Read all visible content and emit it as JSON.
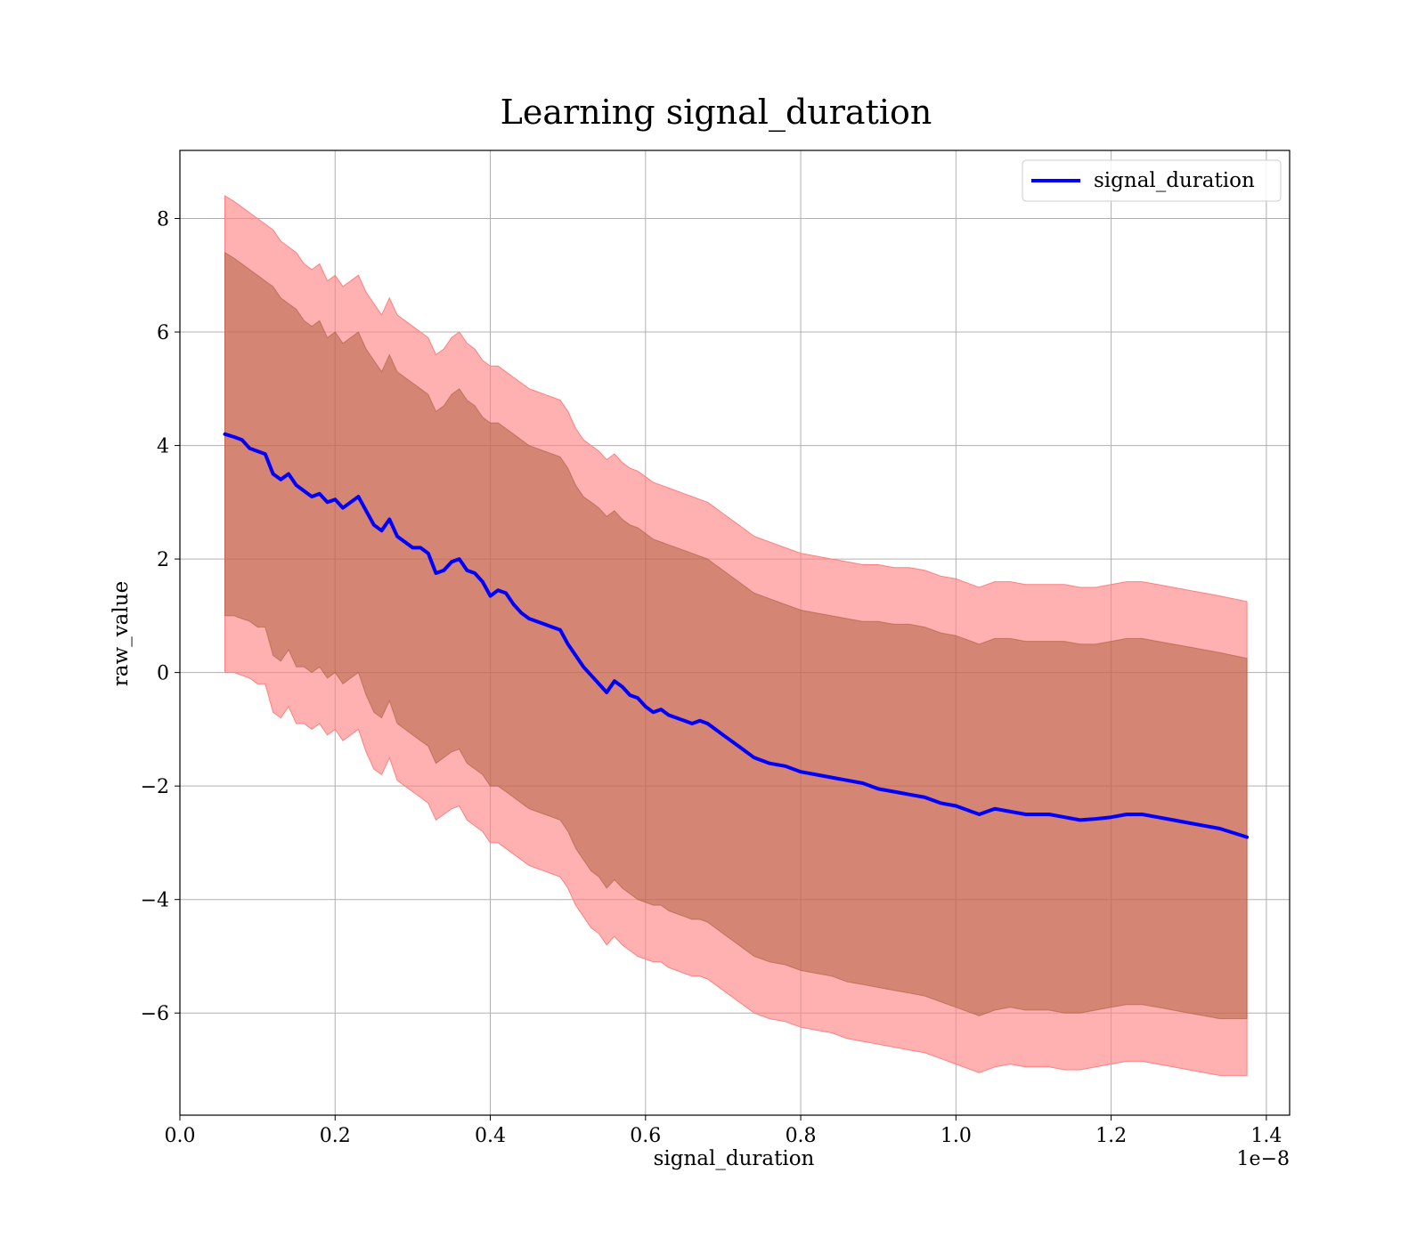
{
  "chart_data": {
    "type": "line",
    "title": "Learning signal_duration",
    "xlabel": "signal_duration",
    "ylabel": "raw_value",
    "x_offset_text": "1e−8",
    "xlim": [
      0.0,
      1.43
    ],
    "ylim": [
      -7.8,
      9.2
    ],
    "x_ticks": [
      0.0,
      0.2,
      0.4,
      0.6,
      0.8,
      1.0,
      1.2,
      1.4
    ],
    "x_tick_labels": [
      "0.0",
      "0.2",
      "0.4",
      "0.6",
      "0.8",
      "1.0",
      "1.2",
      "1.4"
    ],
    "y_ticks": [
      -6,
      -4,
      -2,
      0,
      2,
      4,
      6,
      8
    ],
    "y_tick_labels": [
      "−6",
      "−4",
      "−2",
      "0",
      "2",
      "4",
      "6",
      "8"
    ],
    "grid": true,
    "legend_position": "top-right",
    "colors": {
      "line": "#0000ff",
      "outer_band": "#ff8080",
      "inner_band": "#a0522d"
    },
    "x": [
      0.058,
      0.07,
      0.08,
      0.09,
      0.1,
      0.11,
      0.12,
      0.13,
      0.14,
      0.15,
      0.16,
      0.17,
      0.18,
      0.19,
      0.2,
      0.21,
      0.22,
      0.23,
      0.24,
      0.25,
      0.26,
      0.27,
      0.28,
      0.29,
      0.3,
      0.31,
      0.32,
      0.33,
      0.34,
      0.35,
      0.36,
      0.37,
      0.38,
      0.39,
      0.4,
      0.41,
      0.42,
      0.43,
      0.44,
      0.45,
      0.46,
      0.47,
      0.48,
      0.49,
      0.5,
      0.51,
      0.52,
      0.53,
      0.54,
      0.55,
      0.56,
      0.57,
      0.58,
      0.59,
      0.6,
      0.61,
      0.62,
      0.63,
      0.64,
      0.65,
      0.66,
      0.67,
      0.68,
      0.69,
      0.7,
      0.72,
      0.74,
      0.76,
      0.78,
      0.8,
      0.82,
      0.84,
      0.86,
      0.88,
      0.9,
      0.92,
      0.94,
      0.96,
      0.98,
      1.0,
      1.02,
      1.03,
      1.05,
      1.07,
      1.09,
      1.12,
      1.14,
      1.16,
      1.18,
      1.2,
      1.22,
      1.24,
      1.26,
      1.28,
      1.3,
      1.32,
      1.34,
      1.375
    ],
    "series": [
      {
        "name": "signal_duration",
        "mean": [
          4.2,
          4.15,
          4.1,
          3.95,
          3.9,
          3.85,
          3.5,
          3.4,
          3.5,
          3.3,
          3.2,
          3.1,
          3.15,
          3.0,
          3.05,
          2.9,
          3.0,
          3.1,
          2.85,
          2.6,
          2.5,
          2.7,
          2.4,
          2.3,
          2.2,
          2.2,
          2.1,
          1.75,
          1.8,
          1.95,
          2.0,
          1.8,
          1.75,
          1.6,
          1.35,
          1.45,
          1.4,
          1.2,
          1.05,
          0.95,
          0.9,
          0.85,
          0.8,
          0.75,
          0.5,
          0.3,
          0.1,
          -0.05,
          -0.2,
          -0.35,
          -0.15,
          -0.25,
          -0.4,
          -0.45,
          -0.6,
          -0.7,
          -0.65,
          -0.75,
          -0.8,
          -0.85,
          -0.9,
          -0.85,
          -0.9,
          -1.0,
          -1.1,
          -1.3,
          -1.5,
          -1.6,
          -1.65,
          -1.75,
          -1.8,
          -1.85,
          -1.9,
          -1.95,
          -2.05,
          -2.1,
          -2.15,
          -2.2,
          -2.3,
          -2.35,
          -2.45,
          -2.5,
          -2.4,
          -2.45,
          -2.5,
          -2.5,
          -2.55,
          -2.6,
          -2.58,
          -2.55,
          -2.5,
          -2.5,
          -2.55,
          -2.6,
          -2.65,
          -2.7,
          -2.75,
          -2.9
        ],
        "band_outer_upper": [
          8.4,
          8.3,
          8.2,
          8.1,
          8.0,
          7.9,
          7.8,
          7.6,
          7.5,
          7.4,
          7.2,
          7.1,
          7.2,
          6.9,
          7.0,
          6.8,
          6.9,
          7.0,
          6.7,
          6.5,
          6.3,
          6.6,
          6.3,
          6.2,
          6.1,
          6.0,
          5.9,
          5.6,
          5.7,
          5.9,
          6.0,
          5.8,
          5.7,
          5.5,
          5.4,
          5.4,
          5.3,
          5.2,
          5.1,
          5.0,
          4.95,
          4.9,
          4.85,
          4.8,
          4.6,
          4.3,
          4.1,
          4.0,
          3.9,
          3.75,
          3.85,
          3.7,
          3.6,
          3.55,
          3.45,
          3.35,
          3.3,
          3.25,
          3.2,
          3.15,
          3.1,
          3.05,
          3.0,
          2.9,
          2.8,
          2.6,
          2.4,
          2.3,
          2.2,
          2.1,
          2.05,
          2.0,
          1.95,
          1.9,
          1.9,
          1.85,
          1.85,
          1.8,
          1.7,
          1.65,
          1.55,
          1.5,
          1.6,
          1.6,
          1.55,
          1.55,
          1.55,
          1.5,
          1.5,
          1.55,
          1.6,
          1.6,
          1.55,
          1.5,
          1.45,
          1.4,
          1.35,
          1.25
        ],
        "band_inner_upper": [
          7.4,
          7.3,
          7.2,
          7.1,
          7.0,
          6.9,
          6.8,
          6.6,
          6.5,
          6.4,
          6.2,
          6.1,
          6.2,
          5.9,
          6.0,
          5.8,
          5.9,
          6.0,
          5.7,
          5.5,
          5.3,
          5.6,
          5.3,
          5.2,
          5.1,
          5.0,
          4.9,
          4.6,
          4.7,
          4.9,
          5.0,
          4.8,
          4.7,
          4.5,
          4.4,
          4.4,
          4.3,
          4.2,
          4.1,
          4.0,
          3.95,
          3.9,
          3.85,
          3.8,
          3.6,
          3.3,
          3.1,
          3.0,
          2.9,
          2.75,
          2.85,
          2.7,
          2.6,
          2.55,
          2.45,
          2.35,
          2.3,
          2.25,
          2.2,
          2.15,
          2.1,
          2.05,
          2.0,
          1.9,
          1.8,
          1.6,
          1.4,
          1.3,
          1.2,
          1.1,
          1.05,
          1.0,
          0.95,
          0.9,
          0.9,
          0.85,
          0.85,
          0.8,
          0.7,
          0.65,
          0.55,
          0.5,
          0.6,
          0.6,
          0.55,
          0.55,
          0.55,
          0.5,
          0.5,
          0.55,
          0.6,
          0.6,
          0.55,
          0.5,
          0.45,
          0.4,
          0.35,
          0.25
        ],
        "band_inner_lower": [
          1.0,
          1.0,
          0.95,
          0.9,
          0.8,
          0.8,
          0.3,
          0.2,
          0.4,
          0.1,
          0.1,
          0.0,
          0.1,
          -0.1,
          0.0,
          -0.2,
          -0.1,
          0.0,
          -0.4,
          -0.7,
          -0.8,
          -0.5,
          -0.9,
          -1.0,
          -1.1,
          -1.2,
          -1.3,
          -1.6,
          -1.5,
          -1.4,
          -1.35,
          -1.6,
          -1.7,
          -1.8,
          -2.0,
          -2.0,
          -2.1,
          -2.2,
          -2.3,
          -2.4,
          -2.45,
          -2.5,
          -2.55,
          -2.6,
          -2.8,
          -3.1,
          -3.3,
          -3.5,
          -3.6,
          -3.8,
          -3.65,
          -3.8,
          -3.9,
          -4.0,
          -4.05,
          -4.1,
          -4.1,
          -4.2,
          -4.25,
          -4.3,
          -4.35,
          -4.35,
          -4.4,
          -4.5,
          -4.6,
          -4.8,
          -5.0,
          -5.1,
          -5.15,
          -5.25,
          -5.3,
          -5.35,
          -5.45,
          -5.5,
          -5.55,
          -5.6,
          -5.65,
          -5.7,
          -5.8,
          -5.9,
          -6.0,
          -6.05,
          -5.95,
          -5.9,
          -5.95,
          -5.95,
          -6.0,
          -6.0,
          -5.95,
          -5.9,
          -5.85,
          -5.85,
          -5.9,
          -5.95,
          -6.0,
          -6.05,
          -6.1,
          -6.1
        ],
        "band_outer_lower": [
          0.0,
          0.0,
          -0.05,
          -0.1,
          -0.2,
          -0.2,
          -0.7,
          -0.8,
          -0.6,
          -0.9,
          -0.9,
          -1.0,
          -0.9,
          -1.1,
          -1.0,
          -1.2,
          -1.1,
          -1.0,
          -1.4,
          -1.7,
          -1.8,
          -1.5,
          -1.9,
          -2.0,
          -2.1,
          -2.2,
          -2.3,
          -2.6,
          -2.5,
          -2.4,
          -2.35,
          -2.6,
          -2.7,
          -2.8,
          -3.0,
          -3.0,
          -3.1,
          -3.2,
          -3.3,
          -3.4,
          -3.45,
          -3.5,
          -3.55,
          -3.6,
          -3.8,
          -4.1,
          -4.3,
          -4.5,
          -4.6,
          -4.8,
          -4.65,
          -4.8,
          -4.9,
          -5.0,
          -5.05,
          -5.1,
          -5.1,
          -5.2,
          -5.25,
          -5.3,
          -5.35,
          -5.35,
          -5.4,
          -5.5,
          -5.6,
          -5.8,
          -6.0,
          -6.1,
          -6.15,
          -6.25,
          -6.3,
          -6.35,
          -6.45,
          -6.5,
          -6.55,
          -6.6,
          -6.65,
          -6.7,
          -6.8,
          -6.9,
          -7.0,
          -7.05,
          -6.95,
          -6.9,
          -6.95,
          -6.95,
          -7.0,
          -7.0,
          -6.95,
          -6.9,
          -6.85,
          -6.85,
          -6.9,
          -6.95,
          -7.0,
          -7.05,
          -7.1,
          -7.1
        ]
      }
    ]
  }
}
